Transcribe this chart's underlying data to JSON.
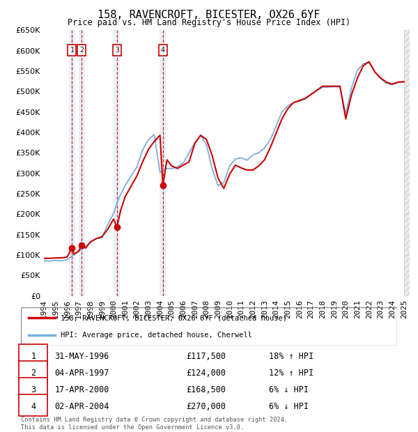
{
  "title": "158, RAVENCROFT, BICESTER, OX26 6YF",
  "subtitle": "Price paid vs. HM Land Registry's House Price Index (HPI)",
  "ylim": [
    0,
    650000
  ],
  "ytick_values": [
    0,
    50000,
    100000,
    150000,
    200000,
    250000,
    300000,
    350000,
    400000,
    450000,
    500000,
    550000,
    600000,
    650000
  ],
  "background_color": "#ffffff",
  "plot_bg_color": "#ffffff",
  "grid_color": "#cccccc",
  "red_line_color": "#cc0000",
  "blue_line_color": "#7aaddc",
  "sale_marker_color": "#cc0000",
  "sale_box_color": "#cc0000",
  "dashed_line_color": "#cc0000",
  "sale_events": [
    {
      "label": "1",
      "date": 1996.42,
      "price": 117500,
      "description": "31-MAY-1996",
      "price_str": "£117,500",
      "hpi_str": "18% ↑ HPI"
    },
    {
      "label": "2",
      "date": 1997.25,
      "price": 124000,
      "description": "04-APR-1997",
      "price_str": "£124,000",
      "hpi_str": "12% ↑ HPI"
    },
    {
      "label": "3",
      "date": 2000.29,
      "price": 168500,
      "description": "17-APR-2000",
      "price_str": "£168,500",
      "hpi_str": "6% ↓ HPI"
    },
    {
      "label": "4",
      "date": 2004.25,
      "price": 270000,
      "description": "02-APR-2004",
      "price_str": "£270,000",
      "hpi_str": "6% ↓ HPI"
    }
  ],
  "legend_red": "158, RAVENCROFT, BICESTER, OX26 6YF (detached house)",
  "legend_blue": "HPI: Average price, detached house, Cherwell",
  "footnote": "Contains HM Land Registry data © Crown copyright and database right 2024.\nThis data is licensed under the Open Government Licence v3.0.",
  "xmin": 1994.0,
  "xmax": 2025.5,
  "xtick_years": [
    1994,
    1995,
    1996,
    1997,
    1998,
    1999,
    2000,
    2001,
    2002,
    2003,
    2004,
    2005,
    2006,
    2007,
    2008,
    2009,
    2010,
    2011,
    2012,
    2013,
    2014,
    2015,
    2016,
    2017,
    2018,
    2019,
    2020,
    2021,
    2022,
    2023,
    2024,
    2025
  ],
  "hpi_years": [
    1994.0,
    1994.5,
    1995.0,
    1995.5,
    1996.0,
    1996.5,
    1997.0,
    1997.5,
    1998.0,
    1998.5,
    1999.0,
    1999.5,
    2000.0,
    2000.5,
    2001.0,
    2001.5,
    2002.0,
    2002.5,
    2003.0,
    2003.5,
    2004.0,
    2004.5,
    2005.0,
    2005.5,
    2006.0,
    2006.5,
    2007.0,
    2007.5,
    2008.0,
    2008.5,
    2009.0,
    2009.5,
    2010.0,
    2010.5,
    2011.0,
    2011.5,
    2012.0,
    2012.5,
    2013.0,
    2013.5,
    2014.0,
    2014.5,
    2015.0,
    2015.5,
    2016.0,
    2016.5,
    2017.0,
    2017.5,
    2018.0,
    2018.5,
    2019.0,
    2019.5,
    2020.0,
    2020.5,
    2021.0,
    2021.5,
    2022.0,
    2022.5,
    2023.0,
    2023.5,
    2024.0,
    2024.5,
    2025.0
  ],
  "hpi_values": [
    86000,
    85000,
    87000,
    86000,
    89000,
    99000,
    109000,
    118000,
    132000,
    140000,
    142000,
    175000,
    202000,
    242000,
    270000,
    293000,
    315000,
    357000,
    382000,
    395000,
    302000,
    312000,
    311000,
    316000,
    325000,
    350000,
    375000,
    393000,
    370000,
    310000,
    270000,
    278000,
    318000,
    335000,
    338000,
    332000,
    345000,
    350000,
    362000,
    382000,
    415000,
    450000,
    465000,
    473000,
    476000,
    482000,
    492000,
    502000,
    510000,
    511000,
    512000,
    511000,
    445000,
    510000,
    552000,
    568000,
    572000,
    548000,
    532000,
    520000,
    517000,
    522000,
    524000
  ],
  "red_years": [
    1994.0,
    1994.5,
    1995.0,
    1995.5,
    1996.0,
    1996.42,
    1996.6,
    1997.0,
    1997.25,
    1997.6,
    1998.0,
    1998.5,
    1999.0,
    1999.5,
    2000.0,
    2000.29,
    2000.6,
    2001.0,
    2001.5,
    2002.0,
    2002.5,
    2003.0,
    2003.5,
    2004.0,
    2004.25,
    2004.6,
    2005.0,
    2005.5,
    2006.0,
    2006.5,
    2007.0,
    2007.5,
    2008.0,
    2008.5,
    2009.0,
    2009.5,
    2010.0,
    2010.5,
    2011.0,
    2011.5,
    2012.0,
    2012.5,
    2013.0,
    2013.5,
    2014.0,
    2014.5,
    2015.0,
    2015.5,
    2016.0,
    2016.5,
    2017.0,
    2017.5,
    2018.0,
    2018.5,
    2019.0,
    2019.5,
    2020.0,
    2020.5,
    2021.0,
    2021.5,
    2022.0,
    2022.5,
    2023.0,
    2023.5,
    2024.0,
    2024.5,
    2025.0
  ],
  "red_values": [
    92000,
    92000,
    93000,
    93000,
    95000,
    117500,
    102000,
    110000,
    124000,
    117000,
    132000,
    140000,
    145000,
    163000,
    188000,
    168500,
    208000,
    243000,
    268000,
    293000,
    328000,
    358000,
    378000,
    393000,
    270000,
    333000,
    318000,
    312000,
    320000,
    328000,
    373000,
    393000,
    383000,
    343000,
    288000,
    263000,
    298000,
    320000,
    313000,
    308000,
    308000,
    318000,
    333000,
    363000,
    398000,
    433000,
    458000,
    473000,
    478000,
    483000,
    493000,
    503000,
    513000,
    513000,
    513000,
    513000,
    433000,
    493000,
    533000,
    563000,
    573000,
    548000,
    533000,
    523000,
    518000,
    523000,
    524000
  ]
}
